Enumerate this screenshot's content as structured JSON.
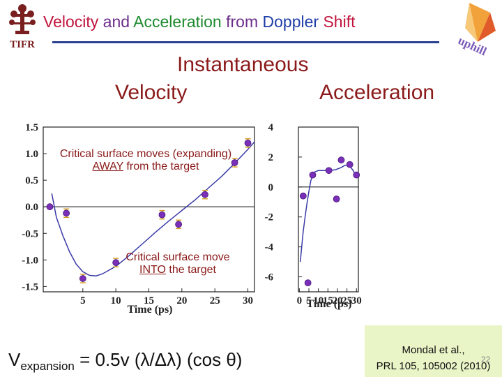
{
  "slide": {
    "title_parts": [
      "Velocity",
      " and ",
      "Acceleration",
      " from ",
      "Doppler",
      " Shift"
    ],
    "heading_instantaneous": "Instantaneous",
    "heading_velocity": "Velocity",
    "heading_acceleration": "Acceleration",
    "logo_left_text": "TIFR",
    "logo_right_text": "uphill",
    "annotation_away_line1": "Critical surface moves (expanding)",
    "annotation_away_word": "AWAY",
    "annotation_away_rest": " from the target",
    "annotation_into_line1": "Critical surface move",
    "annotation_into_word": "INTO",
    "annotation_into_rest": " the target",
    "formula": {
      "v": "V",
      "sub": "expansion",
      "rest": " = 0.5v (λ/Δλ) (cos θ)"
    },
    "citation_line1": "Mondal et al.,",
    "citation_line2": "PRL 105, 105002 (2010)",
    "slide_number": "22",
    "colors": {
      "title_red": "#c0143c",
      "title_purple": "#6b2d8a",
      "title_green": "#1d8a2e",
      "title_blue": "#1f3ea8",
      "heading": "#8b1a1a",
      "fit_line": "#3a3aa8",
      "marker": "#7a2fb8",
      "error_bar": "#d4a020",
      "citation_bg": "#e9f5c6"
    }
  },
  "chart_data": [
    {
      "type": "scatter",
      "xlabel": "Time (ps)",
      "ylabel": "",
      "xlim": [
        -1,
        31
      ],
      "ylim": [
        -1.6,
        1.5
      ],
      "xticks": [
        5,
        10,
        15,
        20,
        25,
        30
      ],
      "xtick_labels": [
        "5",
        "10",
        "15",
        "20",
        "25",
        "30"
      ],
      "yticks": [
        1.5,
        1.0,
        0.5,
        0.0,
        -0.5,
        -1.0,
        -1.5
      ],
      "ytick_labels": [
        "1.5",
        "1.0",
        "0.5",
        "0.0",
        "-0.5",
        "-1.0",
        "-1.5"
      ],
      "zero_line": true,
      "points": [
        {
          "x": 0,
          "y": 0.0,
          "err": 0
        },
        {
          "x": 2.5,
          "y": -0.12,
          "err": 0.08
        },
        {
          "x": 5,
          "y": -1.35,
          "err": 0.08
        },
        {
          "x": 10,
          "y": -1.05,
          "err": 0.08
        },
        {
          "x": 17,
          "y": -0.15,
          "err": 0.08
        },
        {
          "x": 19.5,
          "y": -0.33,
          "err": 0.08
        },
        {
          "x": 23.5,
          "y": 0.23,
          "err": 0.08
        },
        {
          "x": 28,
          "y": 0.83,
          "err": 0.08
        },
        {
          "x": 30,
          "y": 1.2,
          "err": 0.08
        }
      ],
      "fit": [
        [
          0.3,
          0.25
        ],
        [
          1,
          -0.2
        ],
        [
          2,
          -0.55
        ],
        [
          3,
          -0.85
        ],
        [
          4,
          -1.08
        ],
        [
          5,
          -1.22
        ],
        [
          6,
          -1.29
        ],
        [
          7,
          -1.3
        ],
        [
          8,
          -1.26
        ],
        [
          10,
          -1.12
        ],
        [
          12,
          -0.92
        ],
        [
          14,
          -0.7
        ],
        [
          16,
          -0.48
        ],
        [
          18,
          -0.27
        ],
        [
          20,
          -0.07
        ],
        [
          22,
          0.13
        ],
        [
          24,
          0.35
        ],
        [
          26,
          0.57
        ],
        [
          28,
          0.82
        ],
        [
          30,
          1.08
        ],
        [
          31,
          1.22
        ]
      ]
    },
    {
      "type": "scatter",
      "xlabel": "Time (ps)",
      "ylabel": "",
      "xlim": [
        -0.5,
        31
      ],
      "ylim": [
        -7,
        4
      ],
      "xticks": [
        0,
        5,
        10,
        15,
        20,
        25,
        30
      ],
      "xtick_labels": [
        "0",
        "5",
        "10",
        "15",
        "20",
        "25",
        "30"
      ],
      "yticks": [
        4,
        2,
        0,
        -2,
        -4,
        -6
      ],
      "ytick_labels": [
        "4",
        "2",
        "0",
        "-2",
        "-4",
        "-6"
      ],
      "zero_line": true,
      "points": [
        {
          "x": 2,
          "y": -0.6
        },
        {
          "x": 4.5,
          "y": -6.4
        },
        {
          "x": 7,
          "y": 0.8
        },
        {
          "x": 15.5,
          "y": 1.1
        },
        {
          "x": 19.5,
          "y": -0.8
        },
        {
          "x": 22,
          "y": 1.8
        },
        {
          "x": 26.5,
          "y": 1.5
        },
        {
          "x": 30,
          "y": 0.8
        }
      ],
      "fit": [
        [
          0.5,
          -5.0
        ],
        [
          1,
          -4.3
        ],
        [
          2,
          -3.0
        ],
        [
          3,
          -2.0
        ],
        [
          4,
          -1.1
        ],
        [
          5,
          -0.3
        ],
        [
          6,
          0.4
        ],
        [
          7,
          0.8
        ],
        [
          8,
          1.0
        ],
        [
          10,
          1.1
        ],
        [
          13,
          1.1
        ],
        [
          16,
          1.1
        ],
        [
          19,
          1.15
        ],
        [
          22,
          1.3
        ],
        [
          24,
          1.45
        ],
        [
          26,
          1.45
        ],
        [
          28,
          1.15
        ],
        [
          30,
          0.7
        ]
      ]
    }
  ]
}
